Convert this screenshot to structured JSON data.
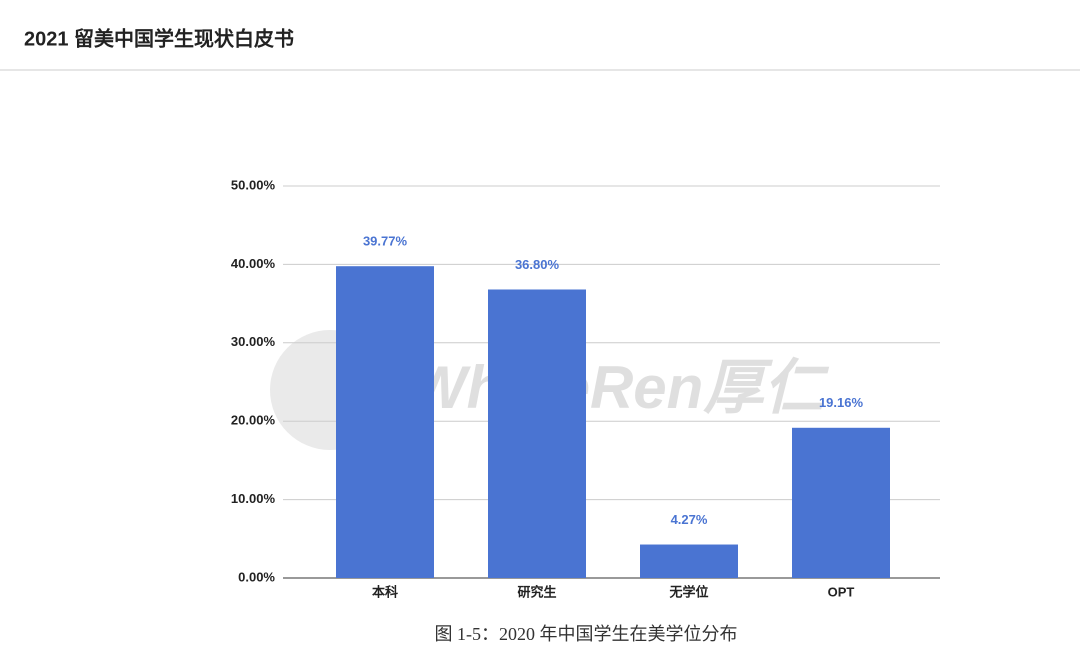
{
  "page_title": "2021 留美中国学生现状白皮书",
  "caption": "图 1-5：2020 年中国学生在美学位分布",
  "watermark": "WholeRen厚仁",
  "chart_data": {
    "type": "bar",
    "categories": [
      "本科",
      "研究生",
      "无学位",
      "OPT"
    ],
    "values": [
      39.77,
      36.8,
      4.27,
      19.16
    ],
    "value_labels": [
      "39.77%",
      "36.80%",
      "4.27%",
      "19.16%"
    ],
    "color": "#4a74d2",
    "ylim": [
      0,
      50
    ],
    "yticks": [
      {
        "value": 0,
        "label": "0.00%"
      },
      {
        "value": 10,
        "label": "10.00%"
      },
      {
        "value": 20,
        "label": "20.00%"
      },
      {
        "value": 30,
        "label": "30.00%"
      },
      {
        "value": 40,
        "label": "40.00%"
      },
      {
        "value": 50,
        "label": "50.00%"
      }
    ],
    "grid": true
  }
}
